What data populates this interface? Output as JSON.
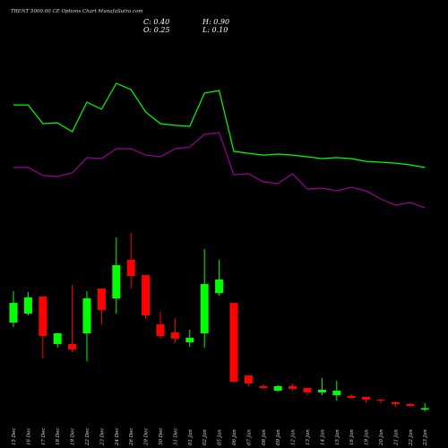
{
  "chart_data": {
    "type": "candlestick",
    "title": "TRENT 5000.00 CE Options Chart MunafaSutra.com",
    "summary": {
      "close": "C: 0.40",
      "high": "H: 0.90",
      "open": "O: 0.25",
      "low": "L: 0.10"
    },
    "categories": [
      "15 Dec",
      "16 Dec",
      "17 Dec",
      "18 Dec",
      "19 Dec",
      "22 Dec",
      "23 Dec",
      "24 Dec",
      "26 Dec",
      "29 Dec",
      "30 Dec",
      "31 Dec",
      "01 Jan",
      "02 Jan",
      "05 Jan",
      "06 Jan",
      "07 Jan",
      "08 Jan",
      "09 Jan",
      "12 Jan",
      "13 Jan",
      "14 Jan",
      "15 Jan",
      "16 Jan",
      "19 Jan",
      "20 Jan",
      "21 Jan",
      "22 Jan",
      "23 Jan"
    ],
    "open": [
      8.89,
      9.78,
      11.47,
      6.76,
      6.76,
      7.82,
      12.27,
      11.29,
      15.11,
      13.6,
      8.71,
      7.91,
      6.93,
      7.82,
      11.82,
      10.84,
      3.64,
      2.58,
      2.13,
      2.58,
      2.4,
      1.96,
      1.69,
      1.6,
      1.51,
      1.24,
      0.98,
      0.8,
      0.25
    ],
    "high": [
      12.0,
      11.91,
      11.47,
      7.82,
      12.62,
      12.0,
      12.27,
      17.33,
      17.78,
      13.6,
      9.96,
      9.33,
      8.18,
      16.18,
      15.11,
      10.84,
      3.64,
      2.76,
      2.67,
      2.84,
      2.4,
      3.38,
      3.11,
      1.78,
      1.51,
      1.33,
      1.07,
      0.9,
      0.9
    ],
    "low": [
      8.44,
      9.6,
      5.33,
      6.4,
      5.96,
      5.07,
      8.71,
      9.78,
      12.27,
      9.24,
      7.29,
      6.84,
      6.49,
      6.4,
      11.56,
      3.02,
      2.58,
      2.31,
      2.04,
      2.13,
      1.69,
      1.69,
      1.16,
      1.33,
      0.89,
      0.89,
      0.53,
      0.53,
      0.1
    ],
    "close": [
      10.84,
      11.38,
      7.56,
      7.82,
      6.22,
      11.29,
      10.13,
      14.58,
      13.51,
      9.6,
      7.56,
      7.29,
      7.38,
      12.71,
      13.16,
      3.02,
      2.84,
      2.4,
      2.58,
      2.31,
      1.96,
      2.22,
      2.13,
      1.42,
      1.24,
      1.16,
      0.8,
      0.62,
      0.4
    ],
    "ylim": [
      0,
      18
    ],
    "up_color": "#00ff00",
    "down_color": "#ff0000",
    "lines": [
      {
        "color": "#00ff00",
        "values": [
          79.4,
          79.4,
          67.8,
          68.3,
          62.8,
          81.1,
          76.7,
          92.8,
          88.9,
          75,
          67.8,
          66.7,
          66.1,
          86.7,
          88.3,
          50.6,
          49.4,
          48.3,
          48.9,
          48.3,
          47.2,
          46.1,
          46.7,
          46.1,
          44.4,
          43.9,
          43.3,
          42.2,
          40.6
        ]
      },
      {
        "color": "#990099",
        "values": [
          40.6,
          40.6,
          35.6,
          35,
          37.2,
          46.7,
          46.1,
          52.2,
          52.2,
          48.3,
          47.2,
          52.2,
          53.3,
          61.1,
          62.2,
          36.1,
          36.7,
          31.7,
          30.6,
          36.7,
          27.2,
          27.8,
          26.1,
          28.3,
          26.1,
          21.1,
          17.2,
          18.9,
          15.6
        ]
      }
    ],
    "y2lim": [
      0,
      100
    ]
  }
}
